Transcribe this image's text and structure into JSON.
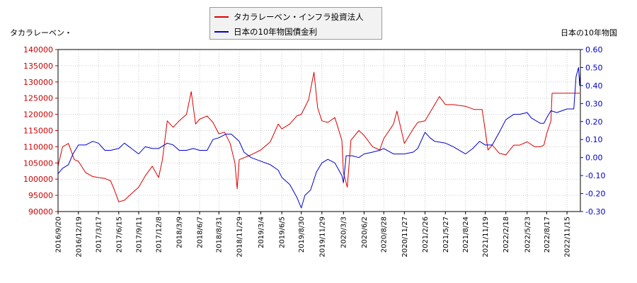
{
  "legend": {
    "series1_label": "タカラレーベン・インフラ投資法人",
    "series2_label": "日本の10年物国債金利"
  },
  "axis_titles": {
    "left": "タカラレーベン・",
    "right": "日本の10年物国"
  },
  "colors": {
    "series1": "#dd0000",
    "series2": "#0000cc",
    "left_axis": "#cc0000",
    "right_axis": "#0000cc",
    "grid": "#cccccc"
  },
  "chart_data": {
    "type": "line",
    "title": "",
    "grid": true,
    "legend_position": "top-center",
    "y_left": {
      "label": "タカラレーベン・",
      "range": [
        90000,
        140000
      ],
      "ticks": [
        90000,
        95000,
        100000,
        105000,
        110000,
        115000,
        120000,
        125000,
        130000,
        135000,
        140000
      ]
    },
    "y_right": {
      "label": "日本の10年物国",
      "range": [
        -0.3,
        0.6
      ],
      "ticks": [
        "-0.30",
        "-0.20",
        "-0.10",
        "0.00",
        "0.10",
        "0.20",
        "0.30",
        "0.40",
        "0.50",
        "0.60"
      ]
    },
    "x_tick_labels": [
      "2016/9/20",
      "2016/12/19",
      "2017/3/17",
      "2017/6/15",
      "2017/9/11",
      "2017/12/8",
      "2018/3/9",
      "2018/6/7",
      "2018/8/31",
      "2018/11/29",
      "2019/3/4",
      "2019/6/5",
      "2019/8/30",
      "2019/11/29",
      "2020/3/3",
      "2020/6/2",
      "2020/8/28",
      "2020/11/27",
      "2021/2/26",
      "2021/5/27",
      "2021/8/24",
      "2021/11/19",
      "2022/2/18",
      "2022/5/23",
      "2022/8/17",
      "2022/11/15"
    ],
    "series": [
      {
        "name": "タカラレーベン・インフラ投資法人",
        "axis": "left",
        "color": "#dd0000",
        "points": [
          [
            "2016/9/20",
            104000
          ],
          [
            "2016/10/10",
            110000
          ],
          [
            "2016/11/5",
            111000
          ],
          [
            "2016/12/1",
            106000
          ],
          [
            "2016/12/19",
            105500
          ],
          [
            "2017/1/20",
            102000
          ],
          [
            "2017/2/20",
            100800
          ],
          [
            "2017/3/17",
            100500
          ],
          [
            "2017/4/15",
            100200
          ],
          [
            "2017/5/10",
            99500
          ],
          [
            "2017/5/25",
            97000
          ],
          [
            "2017/6/15",
            93000
          ],
          [
            "2017/7/10",
            93500
          ],
          [
            "2017/8/10",
            95500
          ],
          [
            "2017/9/11",
            97500
          ],
          [
            "2017/10/10",
            101000
          ],
          [
            "2017/11/10",
            104000
          ],
          [
            "2017/12/8",
            100500
          ],
          [
            "2017/12/25",
            106000
          ],
          [
            "2018/1/15",
            118000
          ],
          [
            "2018/2/10",
            116000
          ],
          [
            "2018/3/9",
            118000
          ],
          [
            "2018/4/10",
            120000
          ],
          [
            "2018/5/1",
            127000
          ],
          [
            "2018/5/20",
            117000
          ],
          [
            "2018/6/7",
            118500
          ],
          [
            "2018/7/10",
            119500
          ],
          [
            "2018/8/5",
            117500
          ],
          [
            "2018/8/31",
            114000
          ],
          [
            "2018/9/25",
            114500
          ],
          [
            "2018/10/20",
            111000
          ],
          [
            "2018/11/10",
            105000
          ],
          [
            "2018/11/20",
            97000
          ],
          [
            "2018/11/29",
            106000
          ],
          [
            "2019/1/20",
            107500
          ],
          [
            "2019/3/4",
            109000
          ],
          [
            "2019/4/15",
            111500
          ],
          [
            "2019/5/20",
            117000
          ],
          [
            "2019/6/5",
            115500
          ],
          [
            "2019/7/10",
            117000
          ],
          [
            "2019/8/10",
            119500
          ],
          [
            "2019/8/30",
            120000
          ],
          [
            "2019/10/1",
            124500
          ],
          [
            "2019/10/25",
            133000
          ],
          [
            "2019/11/10",
            122000
          ],
          [
            "2019/11/29",
            118000
          ],
          [
            "2019/12/25",
            117500
          ],
          [
            "2020/1/25",
            119000
          ],
          [
            "2020/2/25",
            112000
          ],
          [
            "2020/3/3",
            102000
          ],
          [
            "2020/3/20",
            97500
          ],
          [
            "2020/4/5",
            112000
          ],
          [
            "2020/5/10",
            115000
          ],
          [
            "2020/6/2",
            113500
          ],
          [
            "2020/7/10",
            110000
          ],
          [
            "2020/8/10",
            109000
          ],
          [
            "2020/8/28",
            112500
          ],
          [
            "2020/10/10",
            117000
          ],
          [
            "2020/10/25",
            121000
          ],
          [
            "2020/11/27",
            111000
          ],
          [
            "2021/1/5",
            115500
          ],
          [
            "2021/1/25",
            117500
          ],
          [
            "2021/2/26",
            118000
          ],
          [
            "2021/4/10",
            123000
          ],
          [
            "2021/5/1",
            125500
          ],
          [
            "2021/5/27",
            123000
          ],
          [
            "2021/7/1",
            123000
          ],
          [
            "2021/8/24",
            122500
          ],
          [
            "2021/10/1",
            121500
          ],
          [
            "2021/11/5",
            121500
          ],
          [
            "2021/11/19",
            115000
          ],
          [
            "2021/12/1",
            109000
          ],
          [
            "2021/12/20",
            110500
          ],
          [
            "2022/1/20",
            108000
          ],
          [
            "2022/2/18",
            107500
          ],
          [
            "2022/3/25",
            110500
          ],
          [
            "2022/4/20",
            110500
          ],
          [
            "2022/5/23",
            111500
          ],
          [
            "2022/6/25",
            110000
          ],
          [
            "2022/7/20",
            110000
          ],
          [
            "2022/8/5",
            110500
          ],
          [
            "2022/8/17",
            114000
          ],
          [
            "2022/9/5",
            118000
          ],
          [
            "2022/9/10",
            126500
          ],
          [
            "2022/11/15",
            126500
          ],
          [
            "2023/1/10",
            126500
          ]
        ]
      },
      {
        "name": "日本の10年物国債金利",
        "axis": "right",
        "color": "#0000cc",
        "points": [
          [
            "2016/9/20",
            -0.09
          ],
          [
            "2016/10/10",
            -0.06
          ],
          [
            "2016/11/5",
            -0.04
          ],
          [
            "2016/11/25",
            0.02
          ],
          [
            "2016/12/19",
            0.07
          ],
          [
            "2017/1/20",
            0.07
          ],
          [
            "2017/2/20",
            0.09
          ],
          [
            "2017/3/17",
            0.08
          ],
          [
            "2017/4/15",
            0.04
          ],
          [
            "2017/5/10",
            0.04
          ],
          [
            "2017/6/15",
            0.05
          ],
          [
            "2017/7/10",
            0.08
          ],
          [
            "2017/8/10",
            0.05
          ],
          [
            "2017/9/11",
            0.02
          ],
          [
            "2017/10/10",
            0.06
          ],
          [
            "2017/11/10",
            0.05
          ],
          [
            "2017/12/8",
            0.05
          ],
          [
            "2018/1/15",
            0.08
          ],
          [
            "2018/2/10",
            0.07
          ],
          [
            "2018/3/9",
            0.04
          ],
          [
            "2018/4/10",
            0.04
          ],
          [
            "2018/5/10",
            0.05
          ],
          [
            "2018/6/7",
            0.04
          ],
          [
            "2018/7/10",
            0.04
          ],
          [
            "2018/8/5",
            0.1
          ],
          [
            "2018/8/31",
            0.11
          ],
          [
            "2018/10/1",
            0.13
          ],
          [
            "2018/10/25",
            0.13
          ],
          [
            "2018/11/29",
            0.09
          ],
          [
            "2018/12/20",
            0.03
          ],
          [
            "2019/1/20",
            0.0
          ],
          [
            "2019/3/4",
            -0.02
          ],
          [
            "2019/4/15",
            -0.04
          ],
          [
            "2019/5/20",
            -0.07
          ],
          [
            "2019/6/5",
            -0.11
          ],
          [
            "2019/7/10",
            -0.15
          ],
          [
            "2019/8/10",
            -0.22
          ],
          [
            "2019/8/30",
            -0.28
          ],
          [
            "2019/9/15",
            -0.21
          ],
          [
            "2019/10/10",
            -0.18
          ],
          [
            "2019/11/5",
            -0.08
          ],
          [
            "2019/11/29",
            -0.03
          ],
          [
            "2019/12/25",
            -0.01
          ],
          [
            "2020/1/25",
            -0.03
          ],
          [
            "2020/2/25",
            -0.1
          ],
          [
            "2020/3/3",
            -0.14
          ],
          [
            "2020/3/15",
            0.01
          ],
          [
            "2020/4/10",
            0.01
          ],
          [
            "2020/5/10",
            0.0
          ],
          [
            "2020/6/2",
            0.02
          ],
          [
            "2020/7/10",
            0.03
          ],
          [
            "2020/8/10",
            0.04
          ],
          [
            "2020/8/28",
            0.05
          ],
          [
            "2020/10/10",
            0.02
          ],
          [
            "2020/11/27",
            0.02
          ],
          [
            "2021/1/5",
            0.03
          ],
          [
            "2021/1/25",
            0.05
          ],
          [
            "2021/2/26",
            0.14
          ],
          [
            "2021/3/20",
            0.11
          ],
          [
            "2021/4/10",
            0.09
          ],
          [
            "2021/5/27",
            0.08
          ],
          [
            "2021/7/1",
            0.06
          ],
          [
            "2021/8/24",
            0.02
          ],
          [
            "2021/9/25",
            0.05
          ],
          [
            "2021/10/25",
            0.09
          ],
          [
            "2021/11/19",
            0.07
          ],
          [
            "2021/12/20",
            0.07
          ],
          [
            "2022/1/20",
            0.14
          ],
          [
            "2022/2/18",
            0.21
          ],
          [
            "2022/3/25",
            0.24
          ],
          [
            "2022/4/20",
            0.24
          ],
          [
            "2022/5/23",
            0.25
          ],
          [
            "2022/6/10",
            0.22
          ],
          [
            "2022/7/20",
            0.19
          ],
          [
            "2022/8/5",
            0.19
          ],
          [
            "2022/8/17",
            0.22
          ],
          [
            "2022/9/5",
            0.26
          ],
          [
            "2022/10/1",
            0.25
          ],
          [
            "2022/11/15",
            0.27
          ],
          [
            "2022/12/15",
            0.27
          ],
          [
            "2022/12/25",
            0.45
          ],
          [
            "2023/1/5",
            0.5
          ],
          [
            "2023/1/10",
            0.4
          ],
          [
            "2023/1/13",
            0.47
          ]
        ]
      }
    ]
  }
}
